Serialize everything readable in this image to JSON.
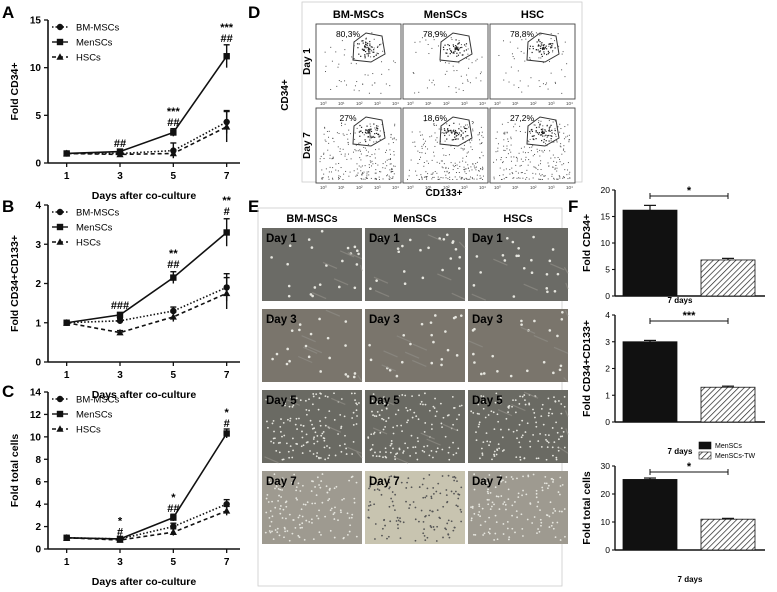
{
  "panel_letters": [
    "A",
    "B",
    "C",
    "D",
    "E",
    "F"
  ],
  "colors": {
    "dark": "#111111",
    "gate": "#333333",
    "phase_light": "#d8d8d0",
    "phase_dark": "#6c6c66"
  },
  "chart_data": [
    {
      "id": "A",
      "type": "line",
      "ylabel": "Fold CD34+",
      "xlabel": "Days after co-culture",
      "x": [
        1,
        3,
        5,
        7
      ],
      "xlim": [
        0.3,
        7.5
      ],
      "ylim": [
        0,
        15
      ],
      "yticks": [
        0,
        5,
        10,
        15
      ],
      "legend_position": "top-left",
      "series": [
        {
          "name": "BM-MSCs",
          "marker": "circle",
          "dash": "dotted",
          "values": [
            1,
            1.0,
            1.3,
            4.3
          ],
          "errors": [
            0.1,
            0.2,
            0.8,
            1.2
          ]
        },
        {
          "name": "MenSCs",
          "marker": "square",
          "dash": "solid",
          "values": [
            1,
            1.2,
            3.2,
            11.2
          ],
          "errors": [
            0.1,
            0.2,
            0.4,
            1.2
          ]
        },
        {
          "name": "HSCs",
          "marker": "triangle",
          "dash": "dashed",
          "values": [
            1,
            0.9,
            1.0,
            3.8
          ],
          "errors": [
            0.1,
            0.2,
            0.3,
            1.6
          ]
        }
      ],
      "annotations": [
        {
          "x": 3,
          "y": 1.7,
          "lines": [
            "##"
          ]
        },
        {
          "x": 5,
          "y": 3.9,
          "lines": [
            "***",
            "##"
          ]
        },
        {
          "x": 7,
          "y": 12.7,
          "lines": [
            "***",
            "##"
          ]
        }
      ]
    },
    {
      "id": "B",
      "type": "line",
      "ylabel": "Fold CD34+CD133+",
      "xlabel": "Days after co-culture",
      "x": [
        1,
        3,
        5,
        7
      ],
      "xlim": [
        0.3,
        7.5
      ],
      "ylim": [
        0,
        4
      ],
      "yticks": [
        0,
        1,
        2,
        3,
        4
      ],
      "legend_position": "top-left",
      "series": [
        {
          "name": "BM-MSCs",
          "marker": "circle",
          "dash": "dotted",
          "values": [
            1,
            1.05,
            1.3,
            1.9
          ],
          "errors": [
            0.02,
            0.06,
            0.1,
            0.35
          ]
        },
        {
          "name": "MenSCs",
          "marker": "square",
          "dash": "solid",
          "values": [
            1,
            1.2,
            2.15,
            3.3
          ],
          "errors": [
            0.02,
            0.06,
            0.15,
            0.35
          ]
        },
        {
          "name": "HSCs",
          "marker": "triangle",
          "dash": "dashed",
          "values": [
            1,
            0.75,
            1.15,
            1.75
          ],
          "errors": [
            0.02,
            0.05,
            0.12,
            0.4
          ]
        }
      ],
      "annotations": [
        {
          "x": 3,
          "y": 1.35,
          "lines": [
            "###"
          ]
        },
        {
          "x": 5,
          "y": 2.4,
          "lines": [
            "**",
            "##"
          ]
        },
        {
          "x": 7,
          "y": 3.75,
          "lines": [
            "**",
            "#"
          ]
        }
      ]
    },
    {
      "id": "C",
      "type": "line",
      "ylabel": "Fold total cells",
      "xlabel": "Days after co-culture",
      "x": [
        1,
        3,
        5,
        7
      ],
      "xlim": [
        0.3,
        7.5
      ],
      "ylim": [
        0,
        14
      ],
      "yticks": [
        0,
        2,
        4,
        6,
        8,
        10,
        12,
        14
      ],
      "legend_position": "top-left",
      "series": [
        {
          "name": "BM-MSCs",
          "marker": "circle",
          "dash": "dotted",
          "values": [
            1,
            0.9,
            2.0,
            4.0
          ],
          "errors": [
            0.1,
            0.1,
            0.3,
            0.4
          ]
        },
        {
          "name": "MenSCs",
          "marker": "square",
          "dash": "solid",
          "values": [
            1,
            0.9,
            2.8,
            10.3
          ],
          "errors": [
            0.1,
            0.1,
            0.3,
            0.4
          ]
        },
        {
          "name": "HSCs",
          "marker": "triangle",
          "dash": "dashed",
          "values": [
            1,
            0.8,
            1.5,
            3.4
          ],
          "errors": [
            0.1,
            0.1,
            0.3,
            0.4
          ]
        }
      ],
      "annotations": [
        {
          "x": 3,
          "y": 1.2,
          "lines": [
            "*",
            "#"
          ]
        },
        {
          "x": 5,
          "y": 3.3,
          "lines": [
            "*",
            "##"
          ]
        },
        {
          "x": 7,
          "y": 10.9,
          "lines": [
            "*",
            "#"
          ]
        }
      ]
    },
    {
      "id": "F1",
      "type": "bar",
      "ylabel": "Fold CD34+",
      "xlabel": "",
      "categories": [
        "MenSCs",
        "MenSCs-TW"
      ],
      "values": [
        16.2,
        6.8
      ],
      "errors": [
        0.9,
        0.3
      ],
      "ylim": [
        0,
        20
      ],
      "yticks": [
        0,
        5,
        10,
        15,
        20
      ],
      "significance": "*"
    },
    {
      "id": "F2",
      "type": "bar",
      "ylabel": "Fold CD34+CD133+",
      "title": "7 days",
      "categories": [
        "MenSCs",
        "MenSCs-TW"
      ],
      "values": [
        3.0,
        1.3
      ],
      "errors": [
        0.05,
        0.04
      ],
      "ylim": [
        0,
        4
      ],
      "yticks": [
        0,
        1,
        2,
        3,
        4
      ],
      "significance": "***"
    },
    {
      "id": "F3",
      "type": "bar",
      "ylabel": "Fold total cells",
      "title": "7 days",
      "xlabel": "7 days",
      "categories": [
        "MenSCs",
        "MenSCs-TW"
      ],
      "values": [
        25.2,
        11.0
      ],
      "errors": [
        0.5,
        0.3
      ],
      "ylim": [
        0,
        30
      ],
      "yticks": [
        0,
        10,
        20,
        30
      ],
      "significance": "*",
      "legend": [
        "MenSCs",
        "MenSCs-TW"
      ],
      "legend_position": "top-right"
    }
  ],
  "flow": {
    "columns": [
      "BM-MSCs",
      "MenSCs",
      "HSC"
    ],
    "rows": [
      "Day 1",
      "Day 7"
    ],
    "percentages": [
      [
        "80,3%",
        "78,9%",
        "78,8%"
      ],
      [
        "27%",
        "18,6%",
        "27,2%"
      ]
    ],
    "ylabel": "CD34+",
    "xlabel": "CD133+",
    "tick_labels": [
      "10⁰",
      "10¹",
      "10²",
      "10³",
      "10⁴"
    ]
  },
  "micrographs": {
    "columns": [
      "BM-MSCs",
      "MenSCs",
      "HSCs"
    ],
    "rows": [
      "Day 1",
      "Day 3",
      "Day 5",
      "Day 7"
    ]
  }
}
